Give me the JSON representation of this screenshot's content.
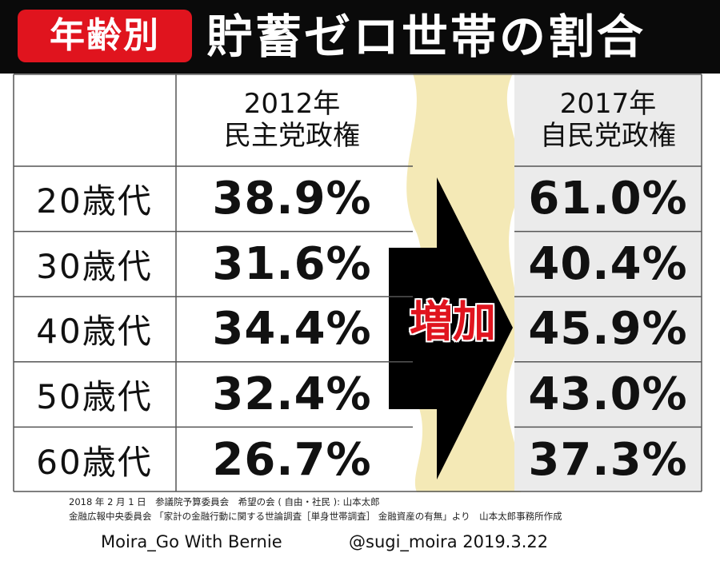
{
  "header": {
    "badge": "年齢別",
    "title": "貯蓄ゼロ世帯の割合"
  },
  "chart_data": {
    "type": "table",
    "columns": [
      {
        "year": "2012年",
        "regime": "民主党政権"
      },
      {
        "year": "2017年",
        "regime": "自民党政権"
      }
    ],
    "rows": [
      {
        "age": "20歳代",
        "v2012": "38.9%",
        "v2017": "61.0%"
      },
      {
        "age": "30歳代",
        "v2012": "31.6%",
        "v2017": "40.4%"
      },
      {
        "age": "40歳代",
        "v2012": "34.4%",
        "v2017": "45.9%"
      },
      {
        "age": "50歳代",
        "v2012": "32.4%",
        "v2017": "43.0%"
      },
      {
        "age": "60歳代",
        "v2012": "26.7%",
        "v2017": "37.3%"
      }
    ],
    "values_2012": [
      38.9,
      31.6,
      34.4,
      32.4,
      26.7
    ],
    "values_2017": [
      61.0,
      40.4,
      45.9,
      43.0,
      37.3
    ],
    "annotation": "増加"
  },
  "source": {
    "line1": "2018 年 2 月 1 日　参議院予算委員会　希望の会 ( 自由・社民 ): 山本太郎",
    "line2": "金融広報中央委員会 「家計の金融行動に関する世論調査［単身世帯調査］ 金融資産の有無」より　山本太郎事務所作成"
  },
  "credit": {
    "left": "Moira_Go With Bernie",
    "right": "@sugi_moira 2019.3.22"
  },
  "colors": {
    "header_bg": "#0a0a0a",
    "badge_red": "#e0141e",
    "band_yellow": "#f4e9b6",
    "col2017_bg": "#ebebeb",
    "arrow": "#000000"
  }
}
